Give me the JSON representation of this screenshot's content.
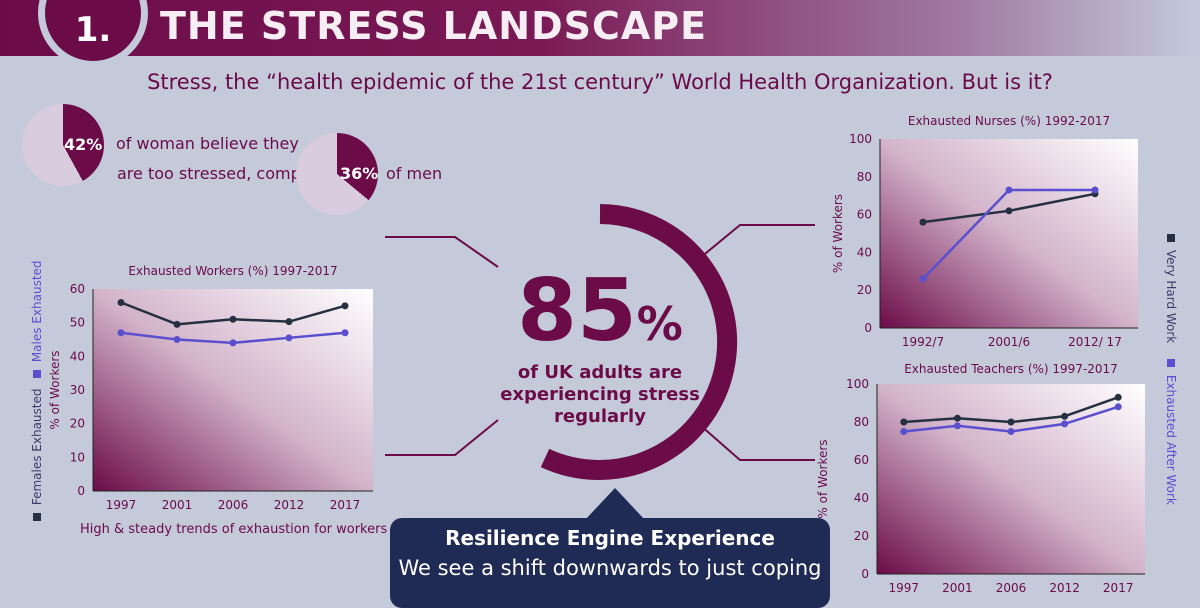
{
  "header": {
    "number": "1.",
    "title": "THE STRESS LANDSCAPE"
  },
  "subtitle": "Stress, the “health epidemic of the 21st century” World Health Organization. But is it?",
  "stats": {
    "women_pct": "42%",
    "women_text": "of woman believe they",
    "compare_text": "are too stressed, compared to",
    "men_pct": "36%",
    "men_text": "of men"
  },
  "headline": {
    "number": "85",
    "unit": "%",
    "line1": "of UK adults are",
    "line2": "experiencing stress",
    "line3": "regularly"
  },
  "info_box": {
    "title": "Resilience Engine Experience",
    "body": "We see a shift downwards to just coping"
  },
  "legend_left": {
    "females": "Females Exhausted",
    "males": "Males Exhausted"
  },
  "legend_right": {
    "very_hard": "Very Hard Work",
    "after_work": "Exhausted After Work"
  },
  "caption": "High & steady trends of exhaustion for workers",
  "colors": {
    "primary": "#6b0b48",
    "series_dark": "#253040",
    "series_blue": "#5a4fcf",
    "navy": "#1f2b55"
  },
  "chart_data": [
    {
      "type": "line",
      "title": "Exhausted Workers (%) 1997-2017",
      "xlabel": "",
      "ylabel": "% of Workers",
      "categories": [
        "1997",
        "2001",
        "2006",
        "2012",
        "2017"
      ],
      "ylim": [
        0,
        60
      ],
      "yticks": [
        0,
        10,
        20,
        30,
        40,
        50,
        60
      ],
      "series": [
        {
          "name": "Females Exhausted",
          "values": [
            56,
            49.5,
            51,
            50.3,
            55
          ]
        },
        {
          "name": "Males Exhausted",
          "values": [
            47,
            45,
            44,
            45.5,
            47
          ]
        }
      ]
    },
    {
      "type": "line",
      "title": "Exhausted Nurses (%) 1992-2017",
      "xlabel": "",
      "ylabel": "% of Workers",
      "categories": [
        "1992/7",
        "2001/6",
        "2012/ 17"
      ],
      "ylim": [
        0,
        100
      ],
      "yticks": [
        0,
        20,
        40,
        60,
        80,
        100
      ],
      "series": [
        {
          "name": "Very Hard Work",
          "values": [
            56,
            62,
            71
          ]
        },
        {
          "name": "Exhausted After Work",
          "values": [
            26,
            73,
            73
          ]
        }
      ]
    },
    {
      "type": "line",
      "title": "Exhausted Teachers (%) 1997-2017",
      "xlabel": "",
      "ylabel": "% of Workers",
      "categories": [
        "1997",
        "2001",
        "2006",
        "2012",
        "2017"
      ],
      "ylim": [
        0,
        100
      ],
      "yticks": [
        0,
        20,
        40,
        60,
        80,
        100
      ],
      "series": [
        {
          "name": "Very Hard Work",
          "values": [
            80,
            82,
            80,
            83,
            93
          ]
        },
        {
          "name": "Exhausted After Work",
          "values": [
            75,
            78,
            75,
            79,
            88
          ]
        }
      ]
    }
  ]
}
